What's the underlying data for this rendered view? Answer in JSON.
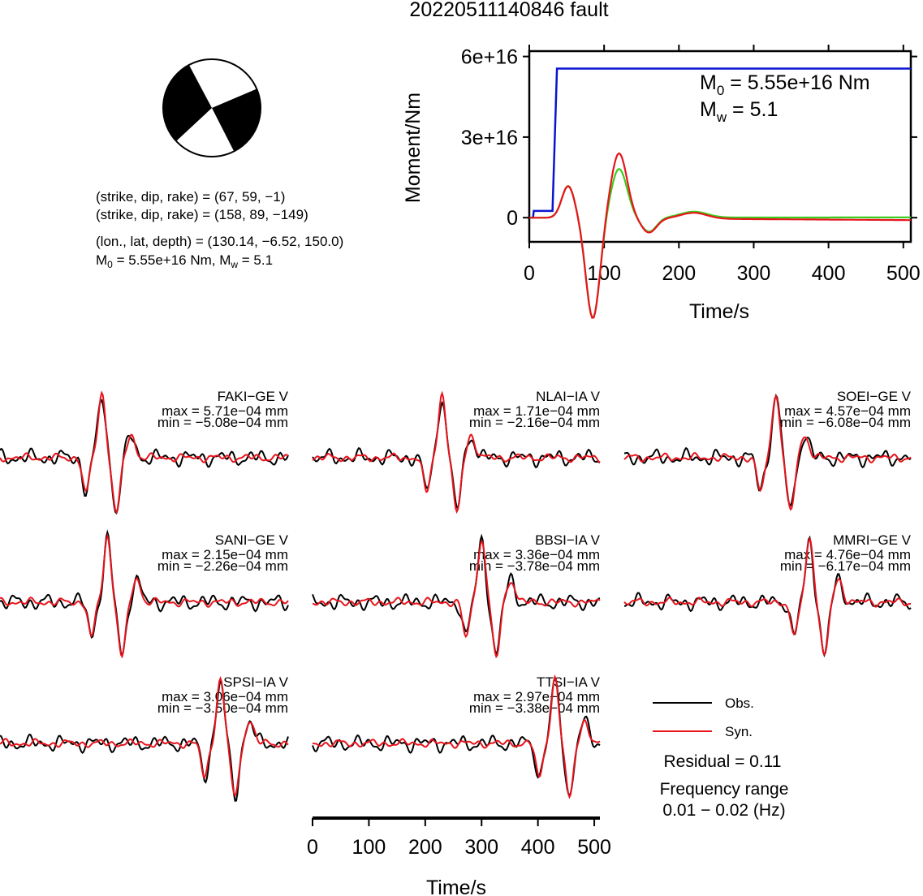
{
  "title": "20220511140846 fault",
  "mechanism": {
    "plane1": "(strike, dip, rake) = (67, 59, −1)",
    "plane2": "(strike, dip, rake) = (158, 89, −149)",
    "location": "(lon., lat, depth) = (130.14, −6.52, 150.0)",
    "m0_prefix": "M",
    "m0_sub": "0",
    "m0_rest": " = 5.55e+16 Nm, M",
    "mw_sub": "w",
    "mw_rest": " = 5.1"
  },
  "moment_panel": {
    "ylabel": "Moment/Nm",
    "xlabel": "Time/s",
    "yticks": [
      "0",
      "3e+16",
      "6e+16"
    ],
    "xticks": [
      "0",
      "100",
      "200",
      "300",
      "400",
      "500"
    ],
    "m0_label_prefix": "M",
    "m0_label_sub": "0",
    "m0_label_rest": " = 5.55e+16 Nm",
    "mw_label_prefix": "M",
    "mw_label_sub": "w",
    "mw_label_rest": " = 5.1"
  },
  "waveform_axis": {
    "xlabel": "Time/s",
    "xticks": [
      "0",
      "100",
      "200",
      "300",
      "400",
      "500"
    ]
  },
  "legend": {
    "obs": "Obs.",
    "syn": "Syn.",
    "residual": "Residual = 0.11",
    "freq_label": "Frequency range",
    "freq_value": "0.01 − 0.02 (Hz)"
  },
  "colors": {
    "obs": "#000000",
    "syn": "#e8141c",
    "moment_rate": "#0a14d0",
    "green_trace": "#3ccc1e"
  },
  "chart_data": [
    {
      "type": "line",
      "id": "moment",
      "xlabel": "Time/s",
      "ylabel": "Moment/Nm",
      "xlim": [
        0,
        510
      ],
      "ylim": [
        -9000000000000000.0,
        6.2e+16
      ],
      "series": [
        {
          "values_x": [
            0,
            5,
            6,
            30,
            31,
            37,
            38,
            510
          ],
          "values_y": [
            0,
            0,
            2500000000000000.0,
            2500000000000000.0,
            2500000000000000.0,
            5.55e+16,
            5.55e+16,
            5.55e+16
          ]
        }
      ]
    },
    {
      "type": "line",
      "id": "waveforms",
      "xlabel": "Time/s",
      "xlim": [
        0,
        510
      ],
      "stations": [
        {
          "name": "FAKI−GE V",
          "max": "max = 5.71e−04 mm",
          "min": "min = −5.08e−04 mm"
        },
        {
          "name": "NLAI−IA V",
          "max": "max = 1.71e−04 mm",
          "min": "min = −2.16e−04 mm"
        },
        {
          "name": "SOEI−GE V",
          "max": "max = 4.57e−04 mm",
          "min": "min = −6.08e−04 mm"
        },
        {
          "name": "SANI−GE V",
          "max": "max = 2.15e−04 mm",
          "min": "min = −2.26e−04 mm"
        },
        {
          "name": "BBSI−IA V",
          "max": "max = 3.36e−04 mm",
          "min": "min = −3.78e−04 mm"
        },
        {
          "name": "MMRI−GE V",
          "max": "max = 4.76e−04 mm",
          "min": "min = −6.17e−04 mm"
        },
        {
          "name": "SPSI−IA V",
          "max": "max = 3.06e−04 mm",
          "min": "min = −3.50e−04 mm"
        },
        {
          "name": "TTSI−IA V",
          "max": "max = 2.97e−04 mm",
          "min": "min = −3.38e−04 mm"
        }
      ]
    }
  ]
}
